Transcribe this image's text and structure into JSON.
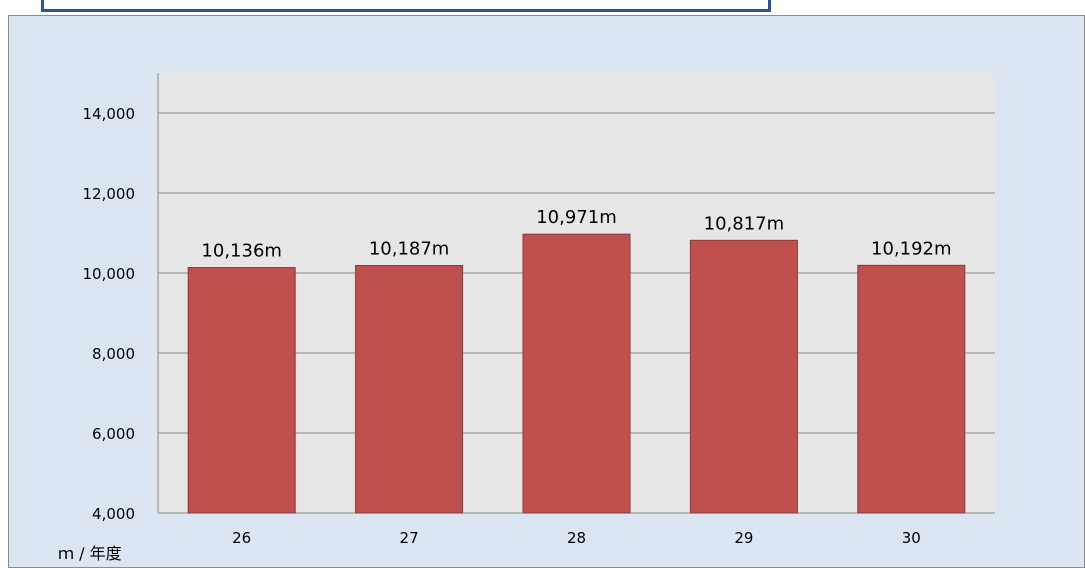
{
  "chart_data": {
    "type": "bar",
    "categories": [
      "26",
      "27",
      "28",
      "29",
      "30"
    ],
    "values": [
      10136,
      10187,
      10971,
      10817,
      10192
    ],
    "data_labels": [
      "10,136m",
      "10,187m",
      "10,971m",
      "10,817m",
      "10,192m"
    ],
    "title": "",
    "xlabel": "",
    "ylabel": "",
    "unit_label": "ｍ / 年度",
    "ylim": [
      4000,
      15000
    ],
    "yticks": [
      4000,
      6000,
      8000,
      10000,
      12000,
      14000
    ],
    "ytick_labels": [
      "4,000",
      "6,000",
      "8,000",
      "10,000",
      "12,000",
      "14,000"
    ],
    "grid": true,
    "legend": "none",
    "bar_color": "#c0504d",
    "plot_background": "#e6e6e6",
    "chart_background": "#dce6f2",
    "frame_color": "#2f5597"
  }
}
